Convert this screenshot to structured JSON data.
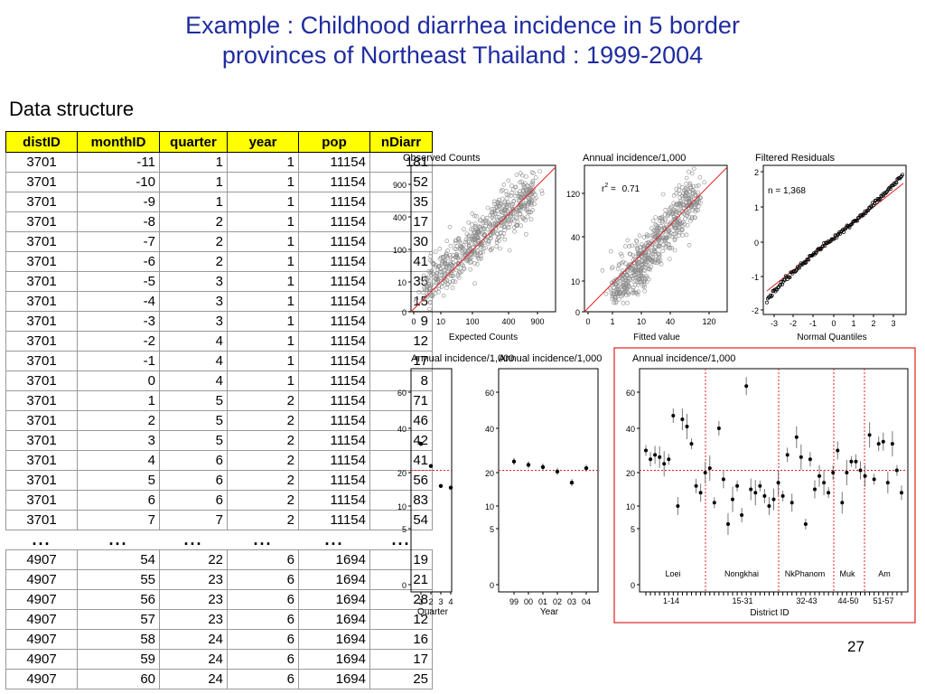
{
  "title_line1": "Example : Childhood diarrhea incidence in 5 border",
  "title_line2": "provinces of Northeast Thailand : 1999-2004",
  "subheading": "Data structure",
  "page_number": "27",
  "table": {
    "headers": [
      "distID",
      "monthID",
      "quarter",
      "year",
      "pop",
      "nDiarr"
    ],
    "rows_top": [
      [
        "3701",
        "-11",
        "1",
        "1",
        "11154",
        "181"
      ],
      [
        "3701",
        "-10",
        "1",
        "1",
        "11154",
        "52"
      ],
      [
        "3701",
        "-9",
        "1",
        "1",
        "11154",
        "35"
      ],
      [
        "3701",
        "-8",
        "2",
        "1",
        "11154",
        "17"
      ],
      [
        "3701",
        "-7",
        "2",
        "1",
        "11154",
        "30"
      ],
      [
        "3701",
        "-6",
        "2",
        "1",
        "11154",
        "41"
      ],
      [
        "3701",
        "-5",
        "3",
        "1",
        "11154",
        "35"
      ],
      [
        "3701",
        "-4",
        "3",
        "1",
        "11154",
        "15"
      ],
      [
        "3701",
        "-3",
        "3",
        "1",
        "11154",
        "9"
      ],
      [
        "3701",
        "-2",
        "4",
        "1",
        "11154",
        "12"
      ],
      [
        "3701",
        "-1",
        "4",
        "1",
        "11154",
        "17"
      ],
      [
        "3701",
        "0",
        "4",
        "1",
        "11154",
        "8"
      ],
      [
        "3701",
        "1",
        "5",
        "2",
        "11154",
        "71"
      ],
      [
        "3701",
        "2",
        "5",
        "2",
        "11154",
        "46"
      ],
      [
        "3701",
        "3",
        "5",
        "2",
        "11154",
        "42"
      ],
      [
        "3701",
        "4",
        "6",
        "2",
        "11154",
        "41"
      ],
      [
        "3701",
        "5",
        "6",
        "2",
        "11154",
        "56"
      ],
      [
        "3701",
        "6",
        "6",
        "2",
        "11154",
        "83"
      ],
      [
        "3701",
        "7",
        "7",
        "2",
        "11154",
        "54"
      ]
    ],
    "ellipsis": "...",
    "rows_bottom": [
      [
        "4907",
        "54",
        "22",
        "6",
        "1694",
        "19"
      ],
      [
        "4907",
        "55",
        "23",
        "6",
        "1694",
        "21"
      ],
      [
        "4907",
        "56",
        "23",
        "6",
        "1694",
        "28"
      ],
      [
        "4907",
        "57",
        "23",
        "6",
        "1694",
        "12"
      ],
      [
        "4907",
        "58",
        "24",
        "6",
        "1694",
        "16"
      ],
      [
        "4907",
        "59",
        "24",
        "6",
        "1694",
        "17"
      ],
      [
        "4907",
        "60",
        "24",
        "6",
        "1694",
        "25"
      ]
    ]
  },
  "chart_data": [
    {
      "type": "scatter",
      "title": "Observed Counts",
      "xlabel": "Expected Counts",
      "xticks": [
        "0",
        "10",
        "100",
        "400",
        "900"
      ],
      "yticks": [
        "0",
        "10",
        "100",
        "400",
        "900"
      ]
    },
    {
      "type": "scatter",
      "title": "Annual incidence/1,000",
      "xlabel": "Fitted value",
      "xticks": [
        "0",
        "1",
        "10",
        "40",
        "120"
      ],
      "yticks": [
        "0",
        "10",
        "40",
        "120"
      ],
      "annotation_r2_label": "r",
      "annotation_r2_sup": "2",
      "annotation_r2_eq": "=",
      "annotation_r2_value": "0.71"
    },
    {
      "type": "scatter",
      "title": "Filtered Residuals",
      "xlabel": "Normal Quantiles",
      "xticks": [
        "-3",
        "-2",
        "-1",
        "0",
        "1",
        "2",
        "3"
      ],
      "yticks": [
        "-2",
        "-1",
        "0",
        "1",
        "2"
      ],
      "annotation": "n = 1,368"
    },
    {
      "type": "scatter",
      "title": "Annual incidence/1,000",
      "xlabel": "Quarter",
      "xticks": [
        "1",
        "2",
        "3",
        "4"
      ],
      "yticks": [
        "0",
        "5",
        "10",
        "20",
        "40",
        "60"
      ],
      "x": [
        1,
        2,
        3,
        4
      ],
      "y": [
        33,
        23,
        16,
        15.5
      ],
      "reference_line": 21
    },
    {
      "type": "scatter",
      "title": "Annual incidence/1,000",
      "xlabel": "Year",
      "xticks": [
        "99",
        "00",
        "01",
        "02",
        "03",
        "04"
      ],
      "yticks": [
        "0",
        "5",
        "10",
        "20",
        "40",
        "60"
      ],
      "x": [
        "99",
        "00",
        "01",
        "02",
        "03",
        "04"
      ],
      "y": [
        25,
        23.5,
        22.5,
        20.5,
        17,
        22
      ],
      "reference_line": 21
    },
    {
      "type": "scatter",
      "title": "Annual incidence/1,000",
      "xlabel": "District ID",
      "xticks": [
        "1-14",
        "15-31",
        "32-43",
        "44-50",
        "51-57"
      ],
      "yticks": [
        "0",
        "5",
        "10",
        "20",
        "40",
        "60"
      ],
      "groups": [
        "Loei",
        "Nongkhai",
        "NkPhanom",
        "Muk",
        "Am"
      ],
      "values": [
        30,
        26,
        28,
        27,
        24,
        26,
        47,
        10,
        45,
        41,
        33,
        16,
        14,
        20,
        22,
        11,
        40,
        18,
        6,
        12,
        16,
        8,
        64,
        15,
        14,
        16,
        13,
        10,
        12,
        17,
        13,
        28,
        11,
        36,
        27,
        6,
        26,
        15,
        19,
        17,
        14,
        20,
        30,
        11,
        20,
        25,
        25,
        21,
        19,
        37,
        18,
        33,
        34,
        17,
        33,
        21,
        14
      ],
      "reference_line": 21
    }
  ]
}
